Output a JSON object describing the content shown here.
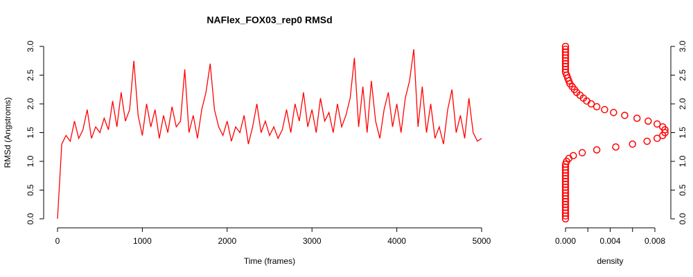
{
  "chart_data": [
    {
      "type": "line",
      "title": "NAFlex_FOX03_rep0 RMSd",
      "x_label": "Time (frames)",
      "y_label": "RMSd (Angstroms)",
      "x": [
        0,
        50,
        100,
        150,
        200,
        250,
        300,
        350,
        400,
        450,
        500,
        550,
        600,
        650,
        700,
        750,
        800,
        850,
        900,
        950,
        1000,
        1050,
        1100,
        1150,
        1200,
        1250,
        1300,
        1350,
        1400,
        1450,
        1500,
        1550,
        1600,
        1650,
        1700,
        1750,
        1800,
        1850,
        1900,
        1950,
        2000,
        2050,
        2100,
        2150,
        2200,
        2250,
        2300,
        2350,
        2400,
        2450,
        2500,
        2550,
        2600,
        2650,
        2700,
        2750,
        2800,
        2850,
        2900,
        2950,
        3000,
        3050,
        3100,
        3150,
        3200,
        3250,
        3300,
        3350,
        3400,
        3450,
        3500,
        3550,
        3600,
        3650,
        3700,
        3750,
        3800,
        3850,
        3900,
        3950,
        4000,
        4050,
        4100,
        4150,
        4200,
        4250,
        4300,
        4350,
        4400,
        4450,
        4500,
        4550,
        4600,
        4650,
        4700,
        4750,
        4800,
        4850,
        4900,
        4950,
        5000
      ],
      "series": [
        {
          "color": "#ff0000",
          "values": [
            0.0,
            1.3,
            1.45,
            1.35,
            1.7,
            1.4,
            1.55,
            1.9,
            1.4,
            1.6,
            1.5,
            1.75,
            1.55,
            2.05,
            1.6,
            2.2,
            1.7,
            1.9,
            2.75,
            1.8,
            1.45,
            2.0,
            1.6,
            1.9,
            1.4,
            1.8,
            1.5,
            1.95,
            1.6,
            1.7,
            2.6,
            1.5,
            1.8,
            1.4,
            1.9,
            2.2,
            2.7,
            1.9,
            1.6,
            1.45,
            1.7,
            1.35,
            1.6,
            1.5,
            1.8,
            1.3,
            1.6,
            2.0,
            1.5,
            1.7,
            1.45,
            1.6,
            1.4,
            1.55,
            1.9,
            1.5,
            2.0,
            1.7,
            2.2,
            1.6,
            1.9,
            1.5,
            2.1,
            1.7,
            1.85,
            1.5,
            2.0,
            1.6,
            1.8,
            2.1,
            2.8,
            1.6,
            2.3,
            1.5,
            2.4,
            1.7,
            1.4,
            1.9,
            2.2,
            1.6,
            2.0,
            1.5,
            2.1,
            2.4,
            2.95,
            1.6,
            2.3,
            1.5,
            2.0,
            1.4,
            1.6,
            1.3,
            1.9,
            2.25,
            1.5,
            1.8,
            1.4,
            2.1,
            1.5,
            1.35,
            1.4
          ]
        }
      ],
      "xlim": [
        0,
        5000
      ],
      "xticks": [
        0,
        1000,
        2000,
        3000,
        4000,
        5000
      ],
      "ylim": [
        0,
        3
      ],
      "yticks": [
        {
          "value": 0,
          "label": "0.0"
        },
        {
          "value": 0.5,
          "label": "0.5"
        },
        {
          "value": 1,
          "label": "1.0"
        },
        {
          "value": 1.5,
          "label": "1.5"
        },
        {
          "value": 2,
          "label": "2.0"
        },
        {
          "value": 2.5,
          "label": "2.5"
        },
        {
          "value": 3,
          "label": "3.0"
        }
      ],
      "y_axis_side": "left"
    },
    {
      "type": "scatter",
      "x_label": "density",
      "series": [
        {
          "color": "#ff0000",
          "x": [
            0,
            0,
            0,
            0,
            0,
            0,
            0,
            0,
            0,
            0,
            0,
            0,
            0,
            0,
            0,
            0,
            0,
            0,
            0,
            0,
            0.0001,
            0.0003,
            0.0007,
            0.0015,
            0.0028,
            0.0045,
            0.006,
            0.0073,
            0.0082,
            0.0087,
            0.0089,
            0.0089,
            0.0087,
            0.0082,
            0.0074,
            0.0064,
            0.0053,
            0.0043,
            0.0035,
            0.0028,
            0.0023,
            0.0019,
            0.0016,
            0.0013,
            0.001,
            0.0008,
            0.0006,
            0.0004,
            0.0003,
            0.0002,
            0.0001,
            0,
            0,
            0,
            0,
            0,
            0,
            0,
            0,
            0,
            0
          ],
          "values": [
            0,
            0.05,
            0.1,
            0.15,
            0.2,
            0.25,
            0.3,
            0.35,
            0.4,
            0.45,
            0.5,
            0.55,
            0.6,
            0.65,
            0.7,
            0.75,
            0.8,
            0.85,
            0.9,
            0.95,
            1.0,
            1.05,
            1.1,
            1.15,
            1.2,
            1.25,
            1.3,
            1.35,
            1.4,
            1.45,
            1.5,
            1.55,
            1.6,
            1.65,
            1.7,
            1.75,
            1.8,
            1.85,
            1.9,
            1.95,
            2.0,
            2.05,
            2.1,
            2.15,
            2.2,
            2.25,
            2.3,
            2.35,
            2.4,
            2.45,
            2.5,
            2.55,
            2.6,
            2.65,
            2.7,
            2.75,
            2.8,
            2.85,
            2.9,
            2.95,
            3.0
          ]
        }
      ],
      "xlim": [
        0,
        0.008
      ],
      "xticks": [
        {
          "value": 0,
          "label": "0.000"
        },
        {
          "value": 0.002,
          "label": null
        },
        {
          "value": 0.004,
          "label": "0.004"
        },
        {
          "value": 0.006,
          "label": null
        },
        {
          "value": 0.008,
          "label": "0.008"
        }
      ],
      "ylim": [
        0,
        3
      ],
      "yticks": [
        {
          "value": 0,
          "label": "0.0"
        },
        {
          "value": 0.5,
          "label": "0.5"
        },
        {
          "value": 1,
          "label": "1.0"
        },
        {
          "value": 1.5,
          "label": "1.5"
        },
        {
          "value": 2,
          "label": "2.0"
        },
        {
          "value": 2.5,
          "label": "2.5"
        },
        {
          "value": 3,
          "label": "3.0"
        }
      ],
      "y_axis_side": "right"
    }
  ]
}
